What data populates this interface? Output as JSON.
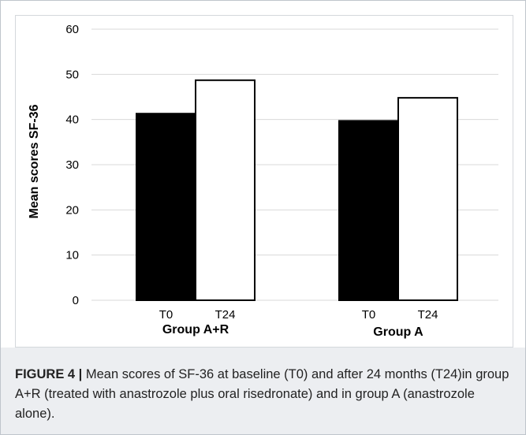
{
  "chart_data": {
    "type": "bar",
    "groups": [
      "Group A+R",
      "Group A"
    ],
    "categories": [
      "T0",
      "T24"
    ],
    "series": [
      {
        "group": "Group A+R",
        "labels": [
          "T0",
          "T24"
        ],
        "values": [
          41.3,
          48.7
        ]
      },
      {
        "group": "Group A",
        "labels": [
          "T0",
          "T24"
        ],
        "values": [
          39.7,
          44.8
        ]
      }
    ],
    "ylabel": "Mean scores SF-36",
    "ylim": [
      0,
      60
    ],
    "yticks": [
      "0",
      "10",
      "20",
      "30",
      "40",
      "50",
      "60"
    ],
    "grid": true,
    "colors": {
      "T0": "#000000",
      "T24": "#ffffff",
      "edge": "#000000",
      "grid": "#d9d9d9"
    }
  },
  "caption": {
    "label": "FIGURE 4 |",
    "text": " Mean scores of SF-36 at baseline (T0) and after 24 months (T24)in group A+R (treated with anastrozole plus oral risedronate) and in group A (anastrozole alone)."
  }
}
